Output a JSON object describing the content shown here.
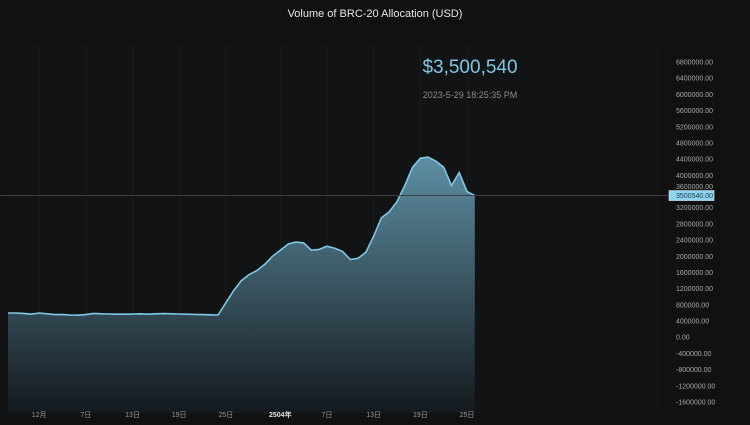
{
  "chart_data": {
    "type": "area",
    "title": "Volume of BRC-20 Allocation (USD)",
    "current_value_label": "$3,500,540",
    "current_timestamp": "2023-5-29 18:25:35 PM",
    "crosshair_value": 3500540,
    "crosshair_label": "3500540.00",
    "ylim": [
      -1600000,
      6800000
    ],
    "yticks": [
      6800000,
      6400000,
      6000000,
      5600000,
      5200000,
      4800000,
      4400000,
      4000000,
      3600000,
      3200000,
      2800000,
      2400000,
      2000000,
      1600000,
      1200000,
      800000,
      400000,
      0,
      -400000,
      -800000,
      -1200000,
      -1600000
    ],
    "ytick_labels": [
      "6800000.00",
      "6400000.00",
      "6000000.00",
      "5600000.00",
      "5200000.00",
      "4800000.00",
      "4400000.00",
      "4000000.00",
      "3600000.00",
      "3200000.00",
      "2800000.00",
      "2400000.00",
      "2000000.00",
      "1600000.00",
      "1200000.00",
      "800000.00",
      "400000.00",
      "0.00",
      "-400000.00",
      "-800000.00",
      "-1200000.00",
      "-1600000.00"
    ],
    "xticks": [
      {
        "index": 4,
        "label": "12月"
      },
      {
        "index": 10,
        "label": "7日"
      },
      {
        "index": 16,
        "label": "13日"
      },
      {
        "index": 22,
        "label": "19日"
      },
      {
        "index": 28,
        "label": "25日"
      },
      {
        "index": 35,
        "label": "2504年",
        "bold": true
      },
      {
        "index": 41,
        "label": "7日"
      },
      {
        "index": 47,
        "label": "13日"
      },
      {
        "index": 53,
        "label": "19日"
      },
      {
        "index": 59,
        "label": "25日"
      }
    ],
    "values": [
      600000,
      600000,
      590000,
      570000,
      600000,
      580000,
      560000,
      560000,
      550000,
      545000,
      560000,
      590000,
      580000,
      575000,
      570000,
      570000,
      575000,
      580000,
      570000,
      580000,
      585000,
      580000,
      575000,
      570000,
      565000,
      560000,
      555000,
      550000,
      850000,
      1150000,
      1400000,
      1550000,
      1650000,
      1800000,
      2000000,
      2150000,
      2300000,
      2350000,
      2330000,
      2150000,
      2170000,
      2250000,
      2200000,
      2120000,
      1920000,
      1950000,
      2100000,
      2500000,
      2950000,
      3100000,
      3350000,
      3750000,
      4200000,
      4420000,
      4450000,
      4350000,
      4200000,
      3750000,
      4070000,
      3600000,
      3500000
    ],
    "line_color": "#7fc8e6",
    "fill_top_color": "#5e8fa3",
    "fill_bottom_color": "#14191d",
    "grid": true
  }
}
